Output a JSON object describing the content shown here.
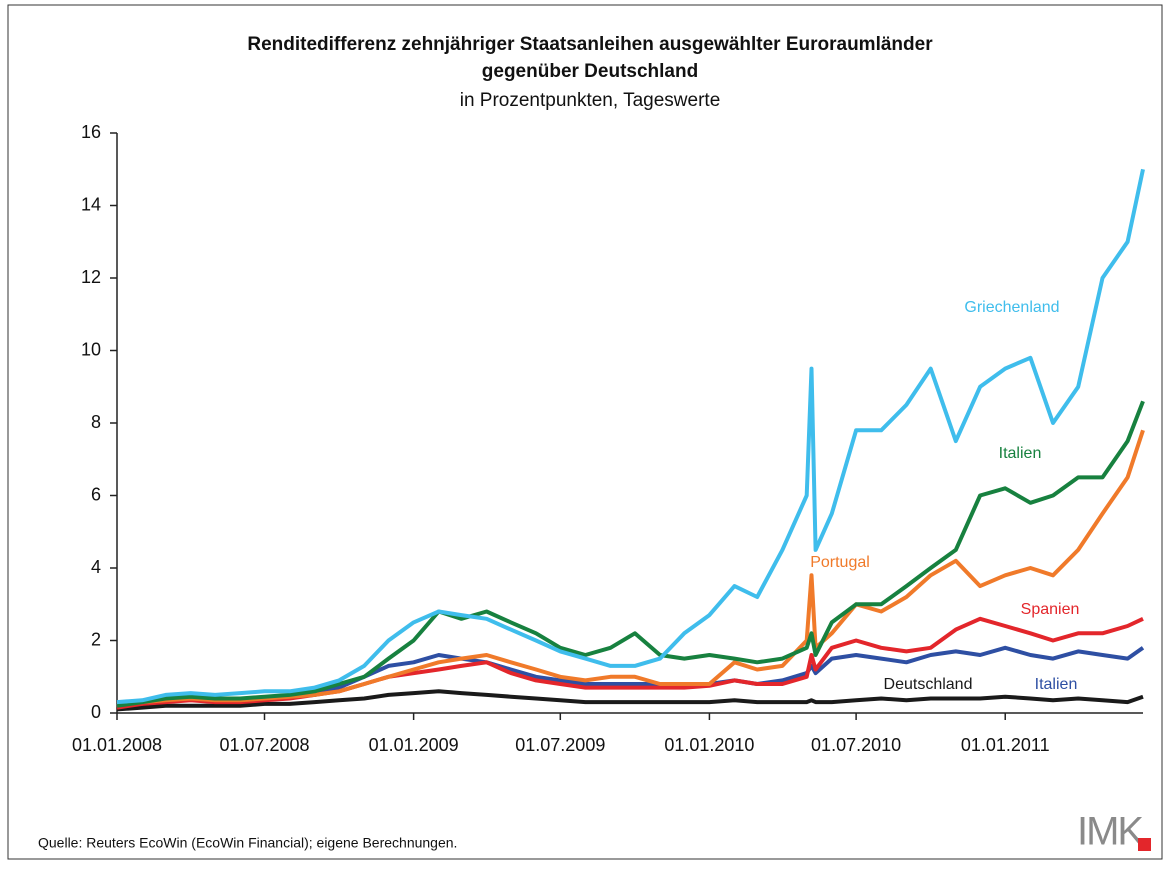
{
  "chart_data": {
    "type": "line",
    "title": "Renditedifferenz zehnjähriger Staatsanleihen ausgewählter Euroraumländer",
    "title_line2": "gegenüber Deutschland",
    "subtitle": "in Prozentpunkten, Tageswerte",
    "source": "Quelle: Reuters EcoWin (EcoWin Financial); eigene Berechnungen.",
    "logo": "IMK",
    "x": [
      "2008-01-01",
      "2008-02-01",
      "2008-03-01",
      "2008-04-01",
      "2008-05-01",
      "2008-06-01",
      "2008-07-01",
      "2008-08-01",
      "2008-09-01",
      "2008-10-01",
      "2008-11-01",
      "2008-12-01",
      "2009-01-01",
      "2009-02-01",
      "2009-03-01",
      "2009-04-01",
      "2009-05-01",
      "2009-06-01",
      "2009-07-01",
      "2009-08-01",
      "2009-09-01",
      "2009-10-01",
      "2009-11-01",
      "2009-12-01",
      "2010-01-01",
      "2010-02-01",
      "2010-03-01",
      "2010-04-01",
      "2010-05-01",
      "2010-05-07",
      "2010-05-12",
      "2010-06-01",
      "2010-07-01",
      "2010-08-01",
      "2010-09-01",
      "2010-10-01",
      "2010-11-01",
      "2010-12-01",
      "2011-01-01",
      "2011-02-01",
      "2011-03-01",
      "2011-04-01",
      "2011-05-01",
      "2011-06-01",
      "2011-06-20"
    ],
    "xlim": [
      "2008-01-01",
      "2011-06-20"
    ],
    "xticks": [
      {
        "value": "2008-01-01",
        "label": "01.01.2008"
      },
      {
        "value": "2008-07-01",
        "label": "01.07.2008"
      },
      {
        "value": "2009-01-01",
        "label": "01.01.2009"
      },
      {
        "value": "2009-07-01",
        "label": "01.07.2009"
      },
      {
        "value": "2010-01-01",
        "label": "01.01.2010"
      },
      {
        "value": "2010-07-01",
        "label": "01.07.2010"
      },
      {
        "value": "2011-01-01",
        "label": "01.01.2011"
      }
    ],
    "ylim": [
      0,
      16
    ],
    "yticks": [
      0,
      2,
      4,
      6,
      8,
      10,
      12,
      14,
      16
    ],
    "series": [
      {
        "name": "Deutschland",
        "color": "#1a1a1a",
        "values": [
          0.1,
          0.15,
          0.2,
          0.2,
          0.2,
          0.2,
          0.25,
          0.25,
          0.3,
          0.35,
          0.4,
          0.5,
          0.55,
          0.6,
          0.55,
          0.5,
          0.45,
          0.4,
          0.35,
          0.3,
          0.3,
          0.3,
          0.3,
          0.3,
          0.3,
          0.35,
          0.3,
          0.3,
          0.3,
          0.35,
          0.3,
          0.3,
          0.35,
          0.4,
          0.35,
          0.4,
          0.4,
          0.4,
          0.45,
          0.4,
          0.35,
          0.4,
          0.35,
          0.3,
          0.45
        ]
      },
      {
        "name": "Italien",
        "color": "#2e4fa3",
        "values": [
          0.2,
          0.3,
          0.35,
          0.4,
          0.35,
          0.4,
          0.4,
          0.45,
          0.5,
          0.7,
          1.0,
          1.3,
          1.4,
          1.6,
          1.5,
          1.4,
          1.2,
          1.0,
          0.9,
          0.8,
          0.8,
          0.8,
          0.8,
          0.8,
          0.8,
          0.9,
          0.8,
          0.9,
          1.1,
          1.3,
          1.1,
          1.5,
          1.6,
          1.5,
          1.4,
          1.6,
          1.7,
          1.6,
          1.8,
          1.6,
          1.5,
          1.7,
          1.6,
          1.5,
          1.8
        ]
      },
      {
        "name": "Spanien",
        "color": "#e3262b",
        "values": [
          0.15,
          0.25,
          0.3,
          0.35,
          0.3,
          0.3,
          0.35,
          0.4,
          0.5,
          0.6,
          0.8,
          1.0,
          1.1,
          1.2,
          1.3,
          1.4,
          1.1,
          0.9,
          0.8,
          0.7,
          0.7,
          0.7,
          0.7,
          0.7,
          0.75,
          0.9,
          0.8,
          0.8,
          1.0,
          1.6,
          1.2,
          1.8,
          2.0,
          1.8,
          1.7,
          1.8,
          2.3,
          2.6,
          2.4,
          2.2,
          2.0,
          2.2,
          2.2,
          2.4,
          2.6
        ]
      },
      {
        "name": "Portugal",
        "color": "#f07a2a",
        "values": [
          0.25,
          0.3,
          0.35,
          0.4,
          0.35,
          0.35,
          0.4,
          0.45,
          0.5,
          0.6,
          0.8,
          1.0,
          1.2,
          1.4,
          1.5,
          1.6,
          1.4,
          1.2,
          1.0,
          0.9,
          1.0,
          1.0,
          0.8,
          0.8,
          0.8,
          1.4,
          1.2,
          1.3,
          2.0,
          3.8,
          1.8,
          2.2,
          3.0,
          2.8,
          3.2,
          3.8,
          4.2,
          3.5,
          3.8,
          4.0,
          3.8,
          4.5,
          5.5,
          6.5,
          7.8
        ]
      },
      {
        "name": "Italien",
        "color": "#17813f",
        "values": [
          0.2,
          0.3,
          0.4,
          0.45,
          0.4,
          0.4,
          0.45,
          0.5,
          0.6,
          0.8,
          1.0,
          1.5,
          2.0,
          2.8,
          2.6,
          2.8,
          2.5,
          2.2,
          1.8,
          1.6,
          1.8,
          2.2,
          1.6,
          1.5,
          1.6,
          1.5,
          1.4,
          1.5,
          1.8,
          2.2,
          1.6,
          2.5,
          3.0,
          3.0,
          3.5,
          4.0,
          4.5,
          6.0,
          6.2,
          5.8,
          6.0,
          6.5,
          6.5,
          7.5,
          8.6
        ]
      },
      {
        "name": "Griechenland",
        "color": "#3fbdec",
        "values": [
          0.3,
          0.35,
          0.5,
          0.55,
          0.5,
          0.55,
          0.6,
          0.6,
          0.7,
          0.9,
          1.3,
          2.0,
          2.5,
          2.8,
          2.7,
          2.6,
          2.3,
          2.0,
          1.7,
          1.5,
          1.3,
          1.3,
          1.5,
          2.2,
          2.7,
          3.5,
          3.2,
          4.5,
          6.0,
          9.5,
          4.5,
          5.5,
          7.8,
          7.8,
          8.5,
          9.5,
          7.5,
          9.0,
          9.5,
          9.8,
          8.0,
          9.0,
          12.0,
          13.0,
          15.0
        ]
      }
    ]
  }
}
